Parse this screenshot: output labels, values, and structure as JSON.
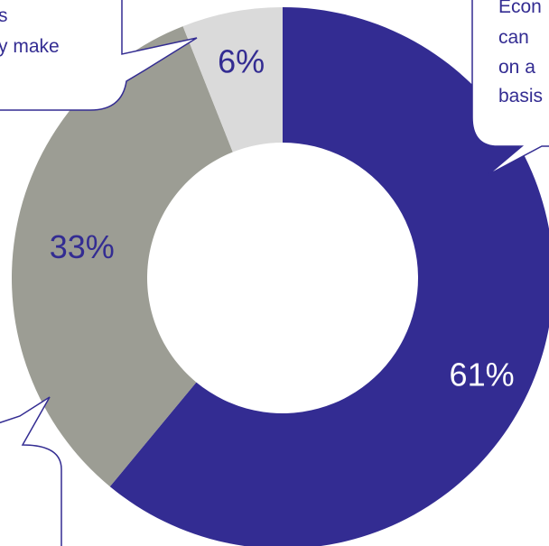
{
  "chart_data": {
    "type": "pie",
    "variant": "donut",
    "categories": [
      "",
      "",
      ""
    ],
    "values": [
      61,
      33,
      6
    ],
    "value_labels": [
      "61%",
      "33%",
      "6%"
    ],
    "colors": [
      "#332c92",
      "#9c9d94",
      "#dadada"
    ],
    "label_colors": [
      "#ffffff",
      "#332c92",
      "#332c92"
    ],
    "title": "",
    "legend": "none"
  },
  "callouts": {
    "left_lines": [
      "s",
      "y make"
    ],
    "right_lines": [
      "Econ",
      "can",
      "on a",
      "basis"
    ]
  },
  "colors": {
    "callout_text": "#332c92",
    "callout_border": "#332c92",
    "callout_fill": "#ffffff"
  }
}
